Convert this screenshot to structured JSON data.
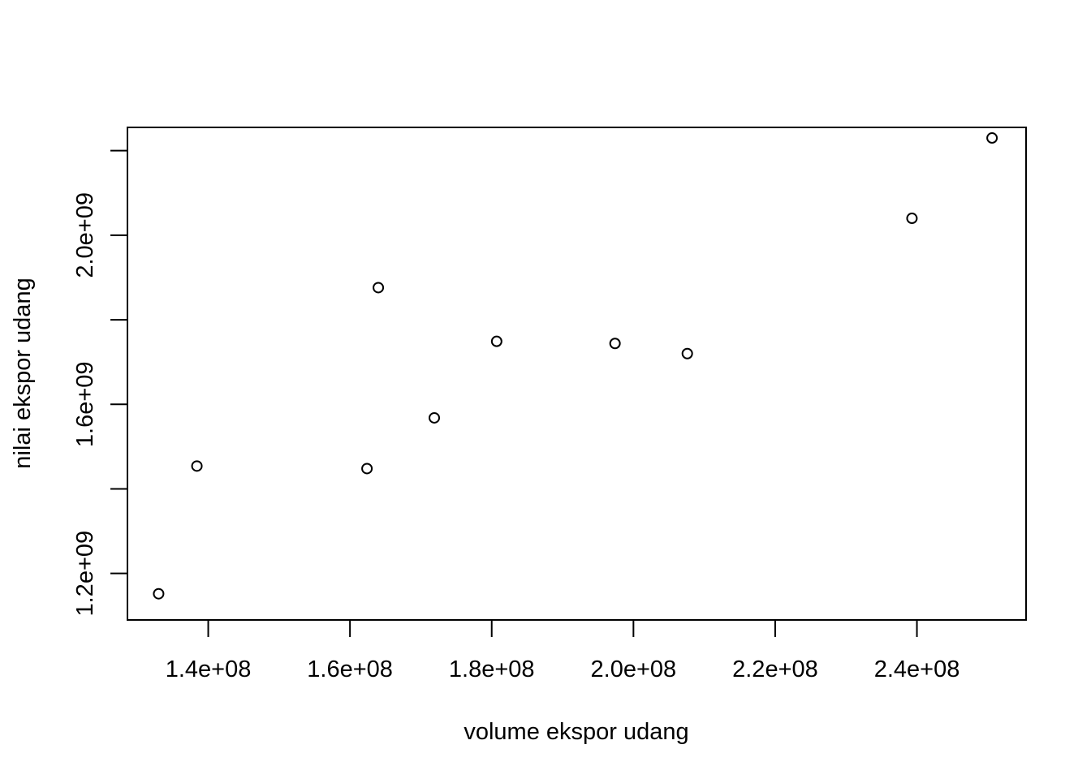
{
  "chart_data": {
    "type": "scatter",
    "title": "",
    "xlabel": "volume ekspor udang",
    "ylabel": "nilai ekspor udang",
    "x_ticks": [
      {
        "value": 140000000,
        "label": "1.4e+08"
      },
      {
        "value": 160000000,
        "label": "1.6e+08"
      },
      {
        "value": 180000000,
        "label": "1.8e+08"
      },
      {
        "value": 200000000,
        "label": "2.0e+08"
      },
      {
        "value": 220000000,
        "label": "2.2e+08"
      },
      {
        "value": 240000000,
        "label": "2.4e+08"
      }
    ],
    "y_ticks": [
      {
        "value": 1200000000,
        "label": "1.2e+09"
      },
      {
        "value": 1400000000,
        "label": ""
      },
      {
        "value": 1600000000,
        "label": "1.6e+09"
      },
      {
        "value": 1800000000,
        "label": ""
      },
      {
        "value": 2000000000,
        "label": "2.0e+09"
      },
      {
        "value": 2200000000,
        "label": ""
      }
    ],
    "xlim": [
      128600000,
      255400000
    ],
    "ylim": [
      1090000000,
      2255000000
    ],
    "grid": false,
    "marker": "open-circle",
    "points": [
      {
        "x": 133000000,
        "y": 1152000000
      },
      {
        "x": 138400000,
        "y": 1454000000
      },
      {
        "x": 162400000,
        "y": 1448000000
      },
      {
        "x": 164000000,
        "y": 1876000000
      },
      {
        "x": 171900000,
        "y": 1568000000
      },
      {
        "x": 180700000,
        "y": 1749000000
      },
      {
        "x": 197400000,
        "y": 1744000000
      },
      {
        "x": 207600000,
        "y": 1720000000
      },
      {
        "x": 239300000,
        "y": 2040000000
      },
      {
        "x": 250600000,
        "y": 2230000000
      }
    ]
  }
}
